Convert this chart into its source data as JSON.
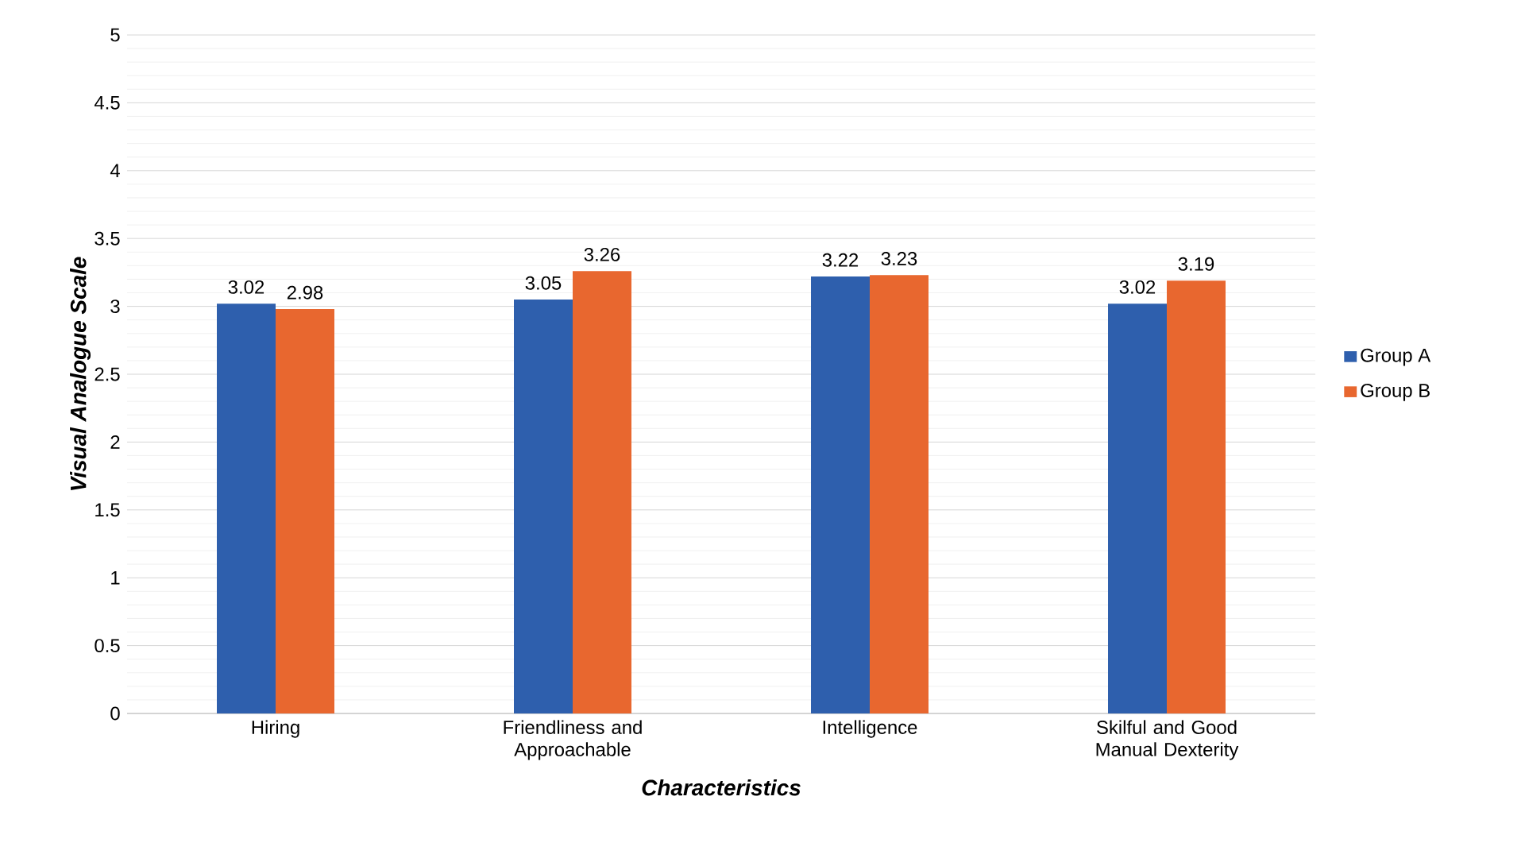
{
  "chart_data": {
    "type": "bar",
    "xlabel": "Characteristics",
    "ylabel": "Visual Analogue Scale",
    "categories": [
      "Hiring",
      "Friendliness and Approachable",
      "Intelligence",
      "Skilful and Good Manual Dexterity"
    ],
    "series": [
      {
        "name": "Group A",
        "color": "#2e5fad",
        "values": [
          3.02,
          3.05,
          3.22,
          3.02
        ]
      },
      {
        "name": "Group B",
        "color": "#e8672f",
        "values": [
          2.98,
          3.26,
          3.23,
          3.19
        ]
      }
    ],
    "ylim": [
      0,
      5
    ],
    "yticks": [
      0,
      0.5,
      1,
      1.5,
      2,
      2.5,
      3,
      3.5,
      4,
      4.5,
      5
    ],
    "grid": "y",
    "legend": "right",
    "data_labels": true
  }
}
